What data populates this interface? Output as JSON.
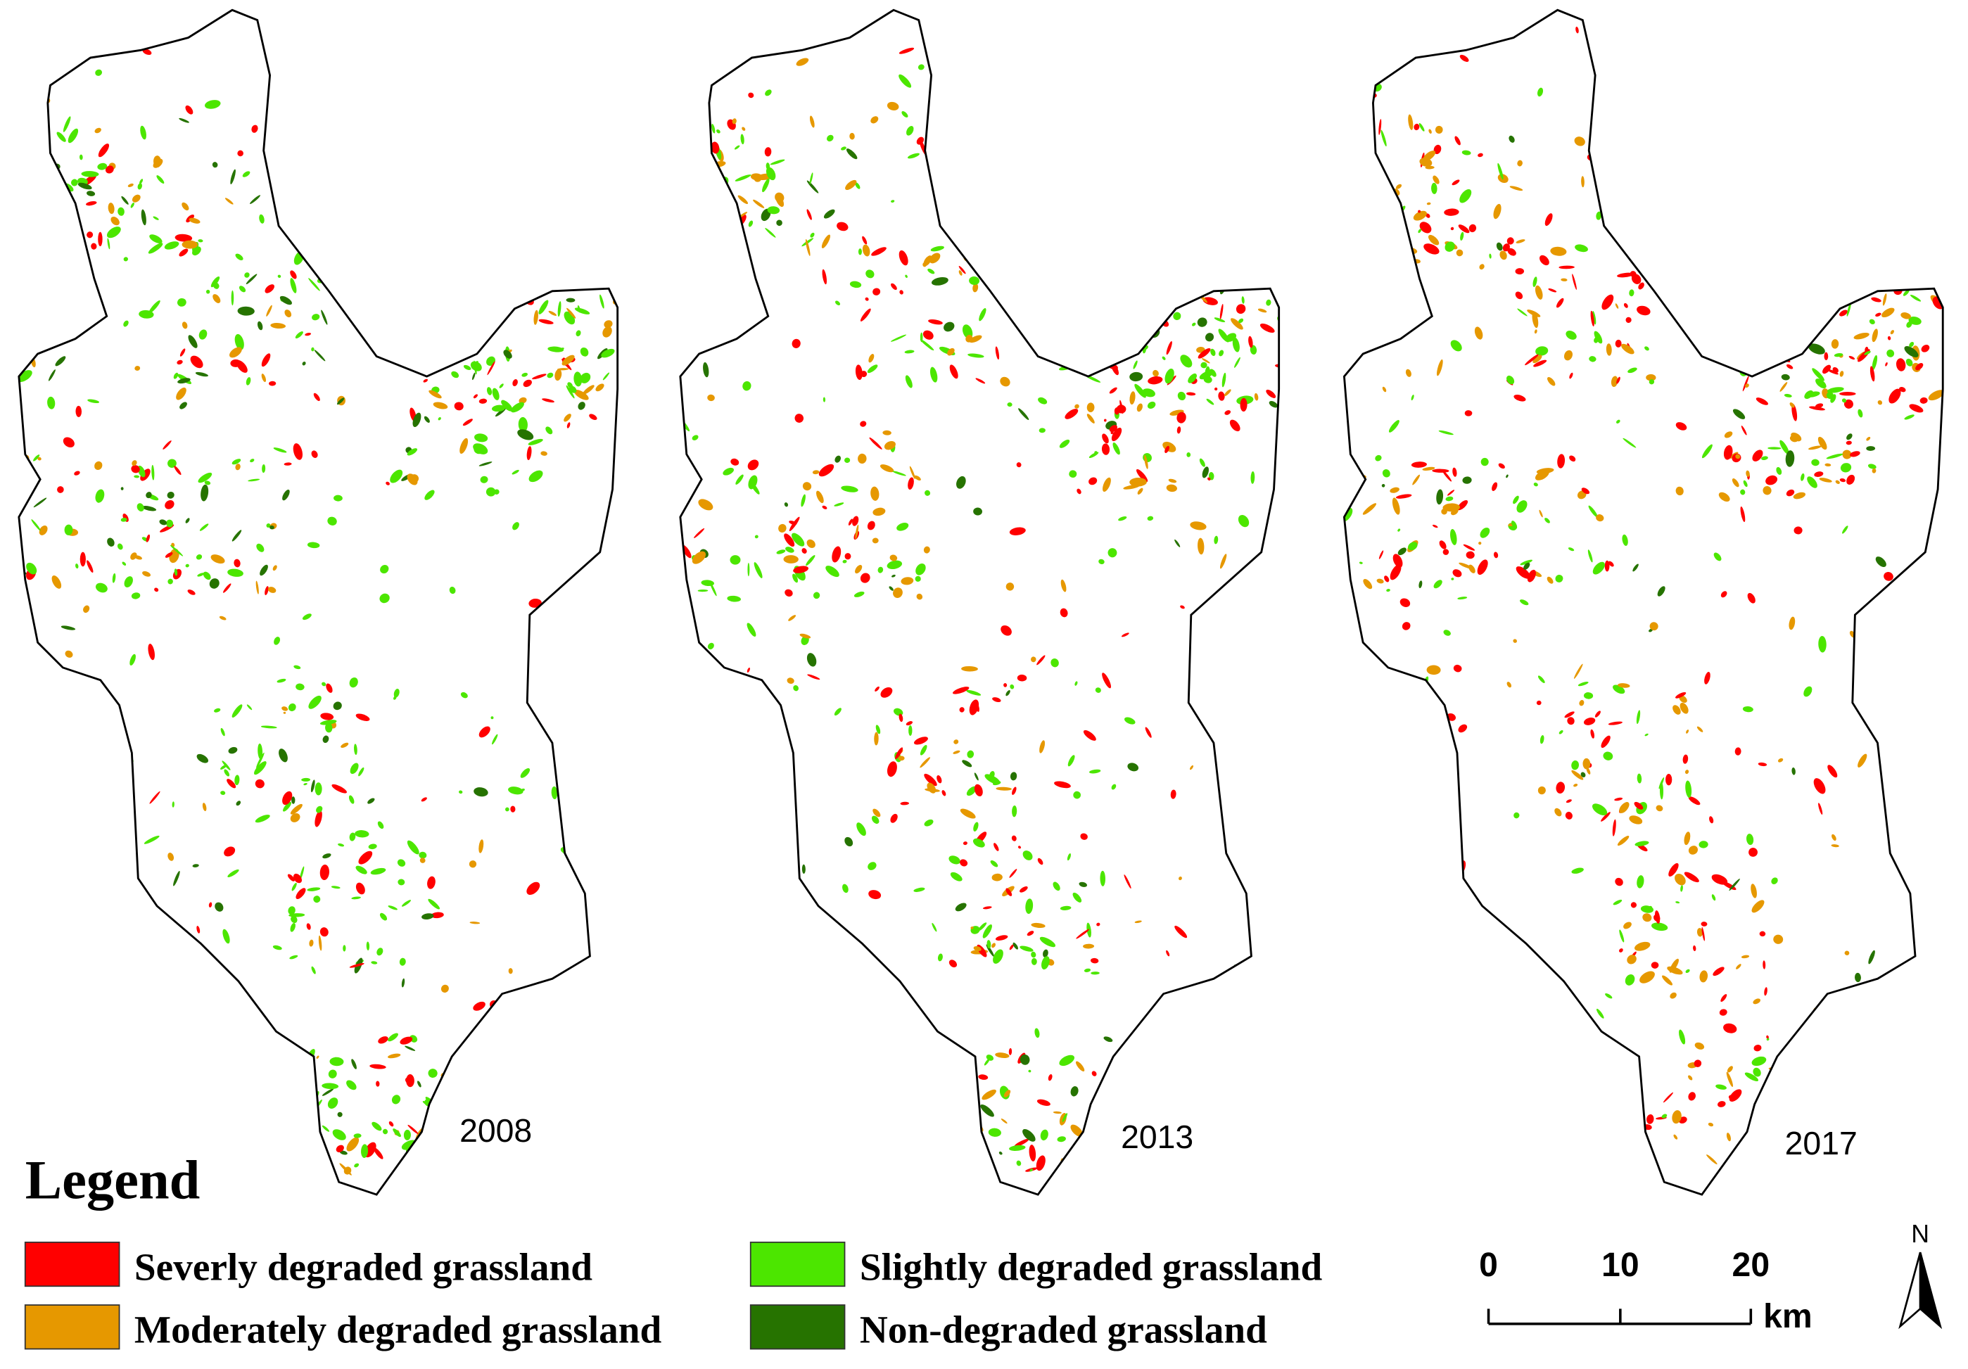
{
  "maps": [
    {
      "year": "2008"
    },
    {
      "year": "2013"
    },
    {
      "year": "2017"
    }
  ],
  "legend": {
    "title": "Legend",
    "items": [
      {
        "label": "Severly degraded grassland",
        "color": "#ff0000"
      },
      {
        "label": "Slightly degraded grassland",
        "color": "#4ce600"
      },
      {
        "label": "Moderately degraded grassland",
        "color": "#e69800"
      },
      {
        "label": "Non-degraded grassland",
        "color": "#267300"
      }
    ]
  },
  "scale_bar": {
    "ticks": [
      "0",
      "10",
      "20"
    ],
    "unit": "km"
  },
  "north_arrow": {
    "label": "N"
  }
}
